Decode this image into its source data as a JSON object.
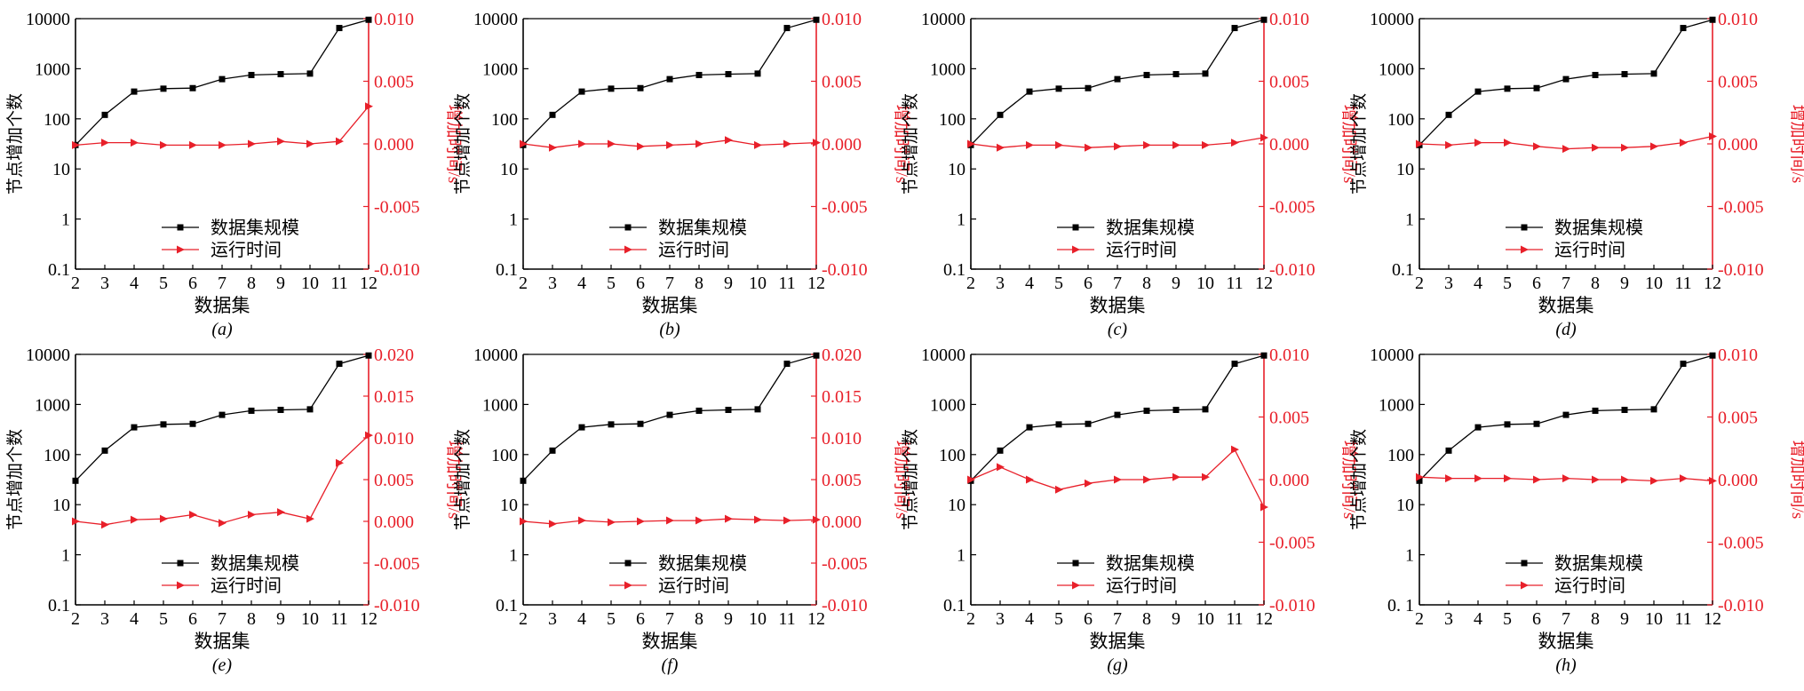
{
  "colors": {
    "black_series": "#000000",
    "red_series": "#e8202a",
    "axis": "#000000",
    "right_axis": "#e8202a"
  },
  "chart_data": [
    {
      "panel": "(a)",
      "type": "line",
      "x": [
        2,
        3,
        4,
        5,
        6,
        7,
        8,
        9,
        10,
        11,
        12
      ],
      "xlabel": "数据集",
      "ylabel_left": "节点增加个数",
      "ylabel_right": "增加时间/s",
      "yscale_left": "log",
      "ylim_left": [
        0.1,
        10000
      ],
      "ylim_right": [
        -0.01,
        0.01
      ],
      "yticks_left": [
        "0.1",
        "1",
        "10",
        "100",
        "1000",
        "10000"
      ],
      "yticks_right": [
        "-0.010",
        "-0.005",
        "0.000",
        "0.005",
        "0.010"
      ],
      "series": [
        {
          "name": "数据集规模",
          "axis": "left",
          "marker": "square",
          "values": [
            30,
            120,
            350,
            400,
            410,
            620,
            750,
            780,
            800,
            6500,
            9500
          ]
        },
        {
          "name": "运行时间",
          "axis": "right",
          "marker": "triangle-right",
          "values": [
            -0.0001,
            0.0001,
            0.0001,
            -0.0001,
            -0.0001,
            -0.0001,
            0,
            0.0002,
            0,
            0.0002,
            0.003
          ]
        }
      ],
      "legend_position": "bottom-center"
    },
    {
      "panel": "(b)",
      "type": "line",
      "x": [
        2,
        3,
        4,
        5,
        6,
        7,
        8,
        9,
        10,
        11,
        12
      ],
      "xlabel": "数据集",
      "ylabel_left": "节点增加个数",
      "ylabel_right": "增加时间/s",
      "yscale_left": "log",
      "ylim_left": [
        0.1,
        10000
      ],
      "ylim_right": [
        -0.01,
        0.01
      ],
      "yticks_left": [
        "0.1",
        "1",
        "10",
        "100",
        "1000",
        "10000"
      ],
      "yticks_right": [
        "-0.010",
        "-0.005",
        "0.000",
        "0.005",
        "0.010"
      ],
      "series": [
        {
          "name": "数据集规模",
          "axis": "left",
          "marker": "square",
          "values": [
            30,
            120,
            350,
            400,
            410,
            620,
            750,
            780,
            800,
            6500,
            9500
          ]
        },
        {
          "name": "运行时间",
          "axis": "right",
          "marker": "triangle-right",
          "values": [
            0,
            -0.0003,
            0,
            0,
            -0.0002,
            -0.0001,
            0,
            0.0003,
            -0.0001,
            0,
            0.0001
          ]
        }
      ],
      "legend_position": "bottom-center"
    },
    {
      "panel": "(c)",
      "type": "line",
      "x": [
        2,
        3,
        4,
        5,
        6,
        7,
        8,
        9,
        10,
        11,
        12
      ],
      "xlabel": "数据集",
      "ylabel_left": "节点增加个数",
      "ylabel_right": "增加时间/s",
      "yscale_left": "log",
      "ylim_left": [
        0.1,
        10000
      ],
      "ylim_right": [
        -0.01,
        0.01
      ],
      "yticks_left": [
        "0.1",
        "1",
        "10",
        "100",
        "1000",
        "10000"
      ],
      "yticks_right": [
        "-0.010",
        "-0.005",
        "0.000",
        "0.005",
        "0.010"
      ],
      "series": [
        {
          "name": "数据集规模",
          "axis": "left",
          "marker": "square",
          "values": [
            30,
            120,
            350,
            400,
            410,
            620,
            750,
            780,
            800,
            6500,
            9500
          ]
        },
        {
          "name": "运行时间",
          "axis": "right",
          "marker": "triangle-right",
          "values": [
            0,
            -0.0003,
            -0.0001,
            -0.0001,
            -0.0003,
            -0.0002,
            -0.0001,
            -0.0001,
            -0.0001,
            0.0001,
            0.0005
          ]
        }
      ],
      "legend_position": "bottom-center"
    },
    {
      "panel": "(d)",
      "type": "line",
      "x": [
        2,
        3,
        4,
        5,
        6,
        7,
        8,
        9,
        10,
        11,
        12
      ],
      "xlabel": "数据集",
      "ylabel_left": "节点增加个数",
      "ylabel_right": "增加时间/s",
      "yscale_left": "log",
      "ylim_left": [
        0.1,
        10000
      ],
      "ylim_right": [
        -0.01,
        0.01
      ],
      "yticks_left": [
        "0.1",
        "1",
        "10",
        "100",
        "1000",
        "10000"
      ],
      "yticks_right": [
        "-0.010",
        "-0.005",
        "0.000",
        "0.005",
        "0.010"
      ],
      "series": [
        {
          "name": "数据集规模",
          "axis": "left",
          "marker": "square",
          "values": [
            30,
            120,
            350,
            400,
            410,
            620,
            750,
            780,
            800,
            6500,
            9500
          ]
        },
        {
          "name": "运行时间",
          "axis": "right",
          "marker": "triangle-right",
          "values": [
            0,
            -0.0001,
            0.0001,
            0.0001,
            -0.0002,
            -0.0004,
            -0.0003,
            -0.0003,
            -0.0002,
            0.0001,
            0.0006
          ]
        }
      ],
      "legend_position": "bottom-center"
    },
    {
      "panel": "(e)",
      "type": "line",
      "x": [
        2,
        3,
        4,
        5,
        6,
        7,
        8,
        9,
        10,
        11,
        12
      ],
      "xlabel": "数据集",
      "ylabel_left": "节点增加个数",
      "ylabel_right": "增加时间/s",
      "yscale_left": "log",
      "ylim_left": [
        0.1,
        10000
      ],
      "ylim_right": [
        -0.01,
        0.02
      ],
      "yticks_left": [
        "0.1",
        "1",
        "10",
        "100",
        "1000",
        "10000"
      ],
      "yticks_right": [
        "-0.010",
        "-0.005",
        "0.000",
        "0.005",
        "0.010",
        "0.015",
        "0.020"
      ],
      "series": [
        {
          "name": "数据集规模",
          "axis": "left",
          "marker": "square",
          "values": [
            30,
            120,
            350,
            400,
            410,
            620,
            750,
            780,
            800,
            6500,
            9500
          ]
        },
        {
          "name": "运行时间",
          "axis": "right",
          "marker": "triangle-right",
          "values": [
            0,
            -0.0004,
            0.0002,
            0.0003,
            0.0008,
            -0.0002,
            0.0008,
            0.0011,
            0.0003,
            0.007,
            0.0103
          ]
        }
      ],
      "legend_position": "bottom-center"
    },
    {
      "panel": "(f)",
      "type": "line",
      "x": [
        2,
        3,
        4,
        5,
        6,
        7,
        8,
        9,
        10,
        11,
        12
      ],
      "xlabel": "数据集",
      "ylabel_left": "节点增加个数",
      "ylabel_right": "增加时间/s",
      "yscale_left": "log",
      "ylim_left": [
        0.1,
        10000
      ],
      "ylim_right": [
        -0.01,
        0.02
      ],
      "yticks_left": [
        "0.1",
        "1",
        "10",
        "100",
        "1000",
        "10000"
      ],
      "yticks_right": [
        "-0.010",
        "-0.005",
        "0.000",
        "0.005",
        "0.010",
        "0.015",
        "0.020"
      ],
      "series": [
        {
          "name": "数据集规模",
          "axis": "left",
          "marker": "square",
          "values": [
            30,
            120,
            350,
            400,
            410,
            620,
            750,
            780,
            800,
            6500,
            9500
          ]
        },
        {
          "name": "运行时间",
          "axis": "right",
          "marker": "triangle-right",
          "values": [
            0,
            -0.0003,
            0.0001,
            -0.0001,
            0,
            0.0001,
            0.0001,
            0.0003,
            0.0002,
            0.0001,
            0.0002
          ]
        }
      ],
      "legend_position": "bottom-center"
    },
    {
      "panel": "(g)",
      "type": "line",
      "x": [
        2,
        3,
        4,
        5,
        6,
        7,
        8,
        9,
        10,
        11,
        12
      ],
      "xlabel": "数据集",
      "ylabel_left": "节点增加个数",
      "ylabel_right": "增加时间/s",
      "yscale_left": "log",
      "ylim_left": [
        0.1,
        10000
      ],
      "ylim_right": [
        -0.01,
        0.01
      ],
      "yticks_left": [
        "0.1",
        "1",
        "10",
        "100",
        "1000",
        "10000"
      ],
      "yticks_right": [
        "-0.010",
        "-0.005",
        "0.000",
        "0.005",
        "0.010"
      ],
      "series": [
        {
          "name": "数据集规模",
          "axis": "left",
          "marker": "square",
          "values": [
            30,
            120,
            350,
            400,
            410,
            620,
            750,
            780,
            800,
            6500,
            9500
          ]
        },
        {
          "name": "运行时间",
          "axis": "right",
          "marker": "triangle-right",
          "values": [
            0,
            0.001,
            0,
            -0.0008,
            -0.0003,
            0,
            0,
            0.0002,
            0.0002,
            0.0024,
            -0.0022
          ]
        }
      ],
      "legend_position": "bottom-center"
    },
    {
      "panel": "(h)",
      "type": "line",
      "x": [
        2,
        3,
        4,
        5,
        6,
        7,
        8,
        9,
        10,
        11,
        12
      ],
      "xlabel": "数据集",
      "ylabel_left": "节点增加个数",
      "ylabel_right": "增加时间/s",
      "yscale_left": "log",
      "ylim_left": [
        0.1,
        10000
      ],
      "ylim_right": [
        -0.01,
        0.01
      ],
      "yticks_left": [
        "0. 1",
        "1",
        "10",
        "100",
        "1000",
        "10000"
      ],
      "yticks_right": [
        "-0.010",
        "-0.005",
        "0.000",
        "0.005",
        "0.010"
      ],
      "series": [
        {
          "name": "数据集规模",
          "axis": "left",
          "marker": "square",
          "values": [
            30,
            120,
            350,
            400,
            410,
            620,
            750,
            780,
            800,
            6500,
            9500
          ]
        },
        {
          "name": "运行时间",
          "axis": "right",
          "marker": "triangle-right",
          "values": [
            0.0002,
            0.0001,
            0.0001,
            0.0001,
            0,
            0.0001,
            0,
            0,
            -0.0001,
            0.0001,
            -0.0001
          ]
        }
      ],
      "legend_position": "bottom-center"
    }
  ]
}
